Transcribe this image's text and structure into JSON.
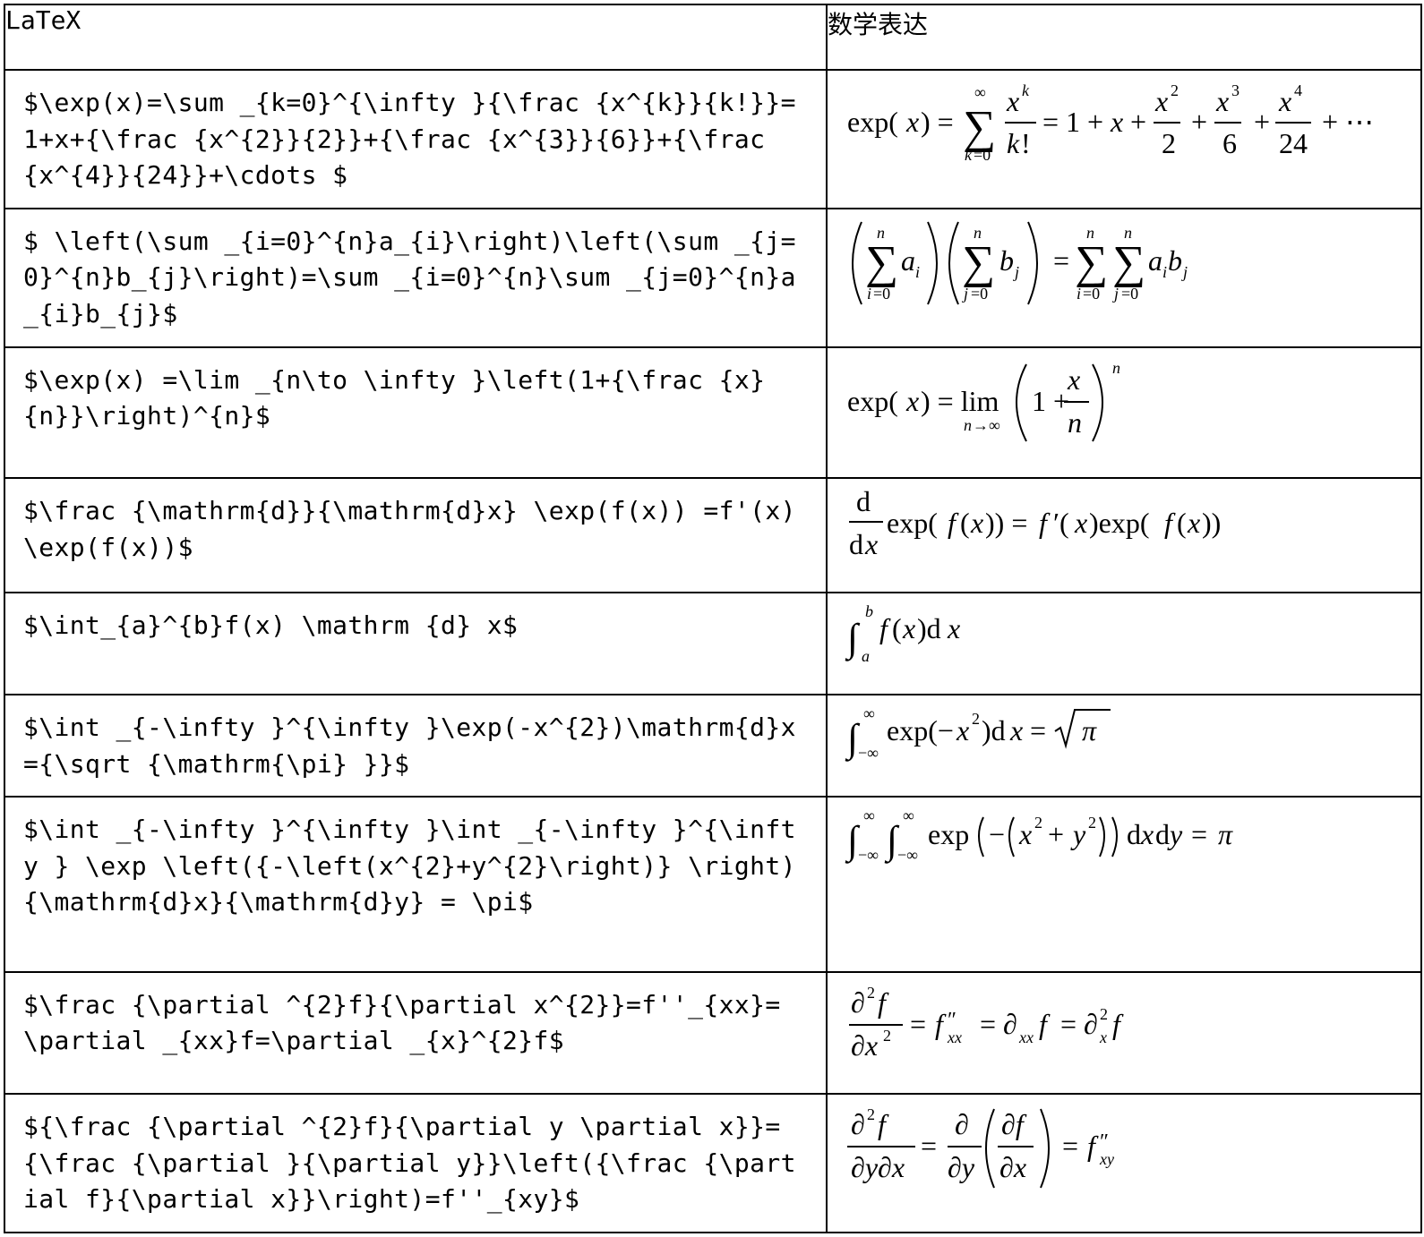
{
  "headers": {
    "latex": "LaTeX",
    "math": "数学表达"
  },
  "rows": [
    {
      "latex": "$\\exp(x)=\\sum _{k=0}^{\\infty }{\\frac {x^{k}}{k!}}=1+x+{\\frac {x^{2}}{2}}+{\\frac {x^{3}}{6}}+{\\frac {x^{4}}{24}}+\\cdots $"
    },
    {
      "latex": "$ \\left(\\sum _{i=0}^{n}a_{i}\\right)\\left(\\sum _{j=0}^{n}b_{j}\\right)=\\sum _{i=0}^{n}\\sum _{j=0}^{n}a_{i}b_{j}$"
    },
    {
      "latex": "$\\exp(x) =\\lim _{n\\to \\infty }\\left(1+{\\frac {x}{n}}\\right)^{n}$"
    },
    {
      "latex": "$\\frac {\\mathrm{d}}{\\mathrm{d}x} \\exp(f(x)) =f'(x) \\exp(f(x))$"
    },
    {
      "latex": "$\\int_{a}^{b}f(x) \\mathrm {d} x$"
    },
    {
      "latex": "$\\int _{-\\infty }^{\\infty }\\exp(-x^{2})\\mathrm{d}x={\\sqrt {\\mathrm{\\pi} }}$"
    },
    {
      "latex": "$\\int _{-\\infty }^{\\infty }\\int _{-\\infty }^{\\infty } \\exp \\left({-\\left(x^{2}+y^{2}\\right)} \\right) {\\mathrm{d}x}{\\mathrm{d}y} = \\pi$"
    },
    {
      "latex": "$\\frac {\\partial ^{2}f}{\\partial x^{2}}=f''_{xx}=\\partial _{xx}f=\\partial _{x}^{2}f$"
    },
    {
      "latex": "${\\frac {\\partial ^{2}f}{\\partial y \\partial x}}={\\frac {\\partial }{\\partial y}}\\left({\\frac {\\partial f}{\\partial x}}\\right)=f''_{xy}$"
    }
  ]
}
